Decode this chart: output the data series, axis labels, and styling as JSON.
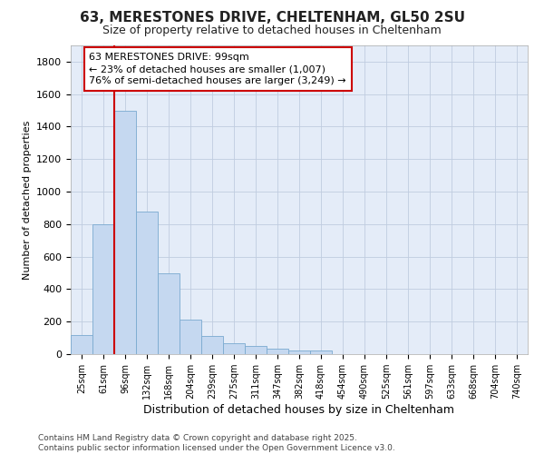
{
  "title_line1": "63, MERESTONES DRIVE, CHELTENHAM, GL50 2SU",
  "title_line2": "Size of property relative to detached houses in Cheltenham",
  "xlabel": "Distribution of detached houses by size in Cheltenham",
  "ylabel": "Number of detached properties",
  "footnote": "Contains HM Land Registry data © Crown copyright and database right 2025.\nContains public sector information licensed under the Open Government Licence v3.0.",
  "bar_color": "#c5d8f0",
  "bar_edge_color": "#7aaad0",
  "background_color": "#e4ecf8",
  "grid_color": "#c0cce0",
  "categories": [
    "25sqm",
    "61sqm",
    "96sqm",
    "132sqm",
    "168sqm",
    "204sqm",
    "239sqm",
    "275sqm",
    "311sqm",
    "347sqm",
    "382sqm",
    "418sqm",
    "454sqm",
    "490sqm",
    "525sqm",
    "561sqm",
    "597sqm",
    "633sqm",
    "668sqm",
    "704sqm",
    "740sqm"
  ],
  "values": [
    120,
    800,
    1500,
    880,
    500,
    210,
    110,
    65,
    50,
    35,
    25,
    20,
    0,
    0,
    0,
    0,
    0,
    0,
    0,
    0,
    0
  ],
  "ylim": [
    0,
    1900
  ],
  "yticks": [
    0,
    200,
    400,
    600,
    800,
    1000,
    1200,
    1400,
    1600,
    1800
  ],
  "property_bar_index": 2,
  "annotation_text": "63 MERESTONES DRIVE: 99sqm\n← 23% of detached houses are smaller (1,007)\n76% of semi-detached houses are larger (3,249) →",
  "annotation_box_facecolor": "#ffffff",
  "annotation_box_edgecolor": "#cc0000",
  "red_line_color": "#cc0000",
  "title_fontsize": 11,
  "subtitle_fontsize": 9,
  "xlabel_fontsize": 9,
  "ylabel_fontsize": 8,
  "tick_fontsize": 8,
  "annotation_fontsize": 8,
  "footnote_fontsize": 6.5
}
